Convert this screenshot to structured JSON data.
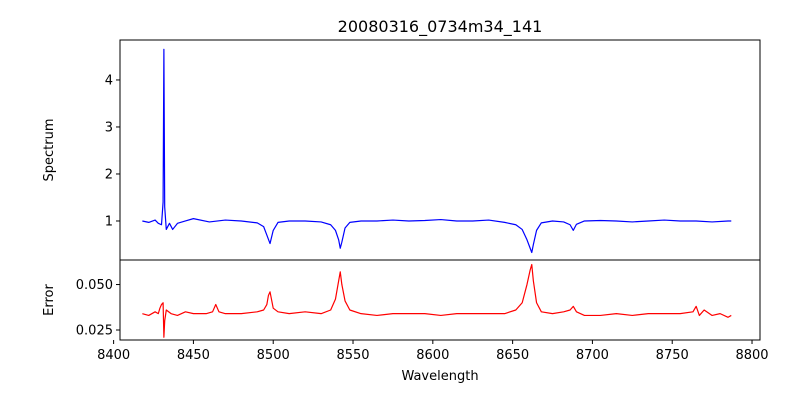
{
  "chart_data": {
    "type": "line",
    "title": "20080316_0734m34_141",
    "xlabel": "Wavelength",
    "xlim": [
      8404,
      8805
    ],
    "xticks": [
      8400,
      8450,
      8500,
      8550,
      8600,
      8650,
      8700,
      8750,
      8800
    ],
    "panels": [
      {
        "ylabel": "Spectrum",
        "ylim": [
          0.17,
          4.85
        ],
        "yticks": [
          1,
          2,
          3,
          4
        ],
        "series": [
          {
            "color": "#0000ff",
            "x": [
              8418,
              8422,
              8426,
              8428,
              8430,
              8431,
              8431.5,
              8432,
              8433,
              8435,
              8437,
              8440,
              8445,
              8450,
              8460,
              8470,
              8480,
              8490,
              8494,
              8496,
              8498,
              8500,
              8503,
              8510,
              8520,
              8530,
              8536,
              8539,
              8541,
              8542,
              8543,
              8545,
              8548,
              8555,
              8565,
              8575,
              8585,
              8595,
              8605,
              8615,
              8625,
              8635,
              8645,
              8652,
              8656,
              8659,
              8661,
              8662,
              8663,
              8665,
              8668,
              8675,
              8682,
              8686,
              8688,
              8690,
              8695,
              8705,
              8715,
              8725,
              8735,
              8745,
              8755,
              8765,
              8775,
              8785,
              8787
            ],
            "values": [
              1.0,
              0.97,
              1.02,
              0.95,
              0.92,
              1.4,
              4.65,
              1.3,
              0.82,
              0.95,
              0.82,
              0.95,
              1.0,
              1.05,
              0.98,
              1.02,
              1.0,
              0.96,
              0.88,
              0.7,
              0.52,
              0.8,
              0.97,
              1.0,
              1.0,
              0.98,
              0.92,
              0.8,
              0.6,
              0.42,
              0.55,
              0.85,
              0.97,
              1.0,
              1.0,
              1.02,
              1.0,
              1.01,
              1.03,
              1.0,
              1.0,
              1.02,
              0.97,
              0.92,
              0.82,
              0.6,
              0.42,
              0.33,
              0.5,
              0.8,
              0.96,
              1.0,
              0.98,
              0.92,
              0.8,
              0.93,
              1.0,
              1.01,
              1.0,
              0.98,
              1.0,
              1.02,
              1.0,
              1.0,
              0.98,
              1.0,
              1.0
            ]
          }
        ]
      },
      {
        "ylabel": "Error",
        "ylim": [
          0.0195,
          0.0635
        ],
        "yticks": [
          0.025,
          0.05
        ],
        "yticklabels": [
          "0.025",
          "0.050"
        ],
        "series": [
          {
            "color": "#ff0000",
            "x": [
              8418,
              8422,
              8426,
              8428,
              8429,
              8430,
              8431,
              8431.5,
              8432,
              8433,
              8436,
              8440,
              8445,
              8450,
              8458,
              8462,
              8464,
              8466,
              8470,
              8480,
              8490,
              8494,
              8496,
              8497,
              8498,
              8500,
              8503,
              8510,
              8520,
              8530,
              8536,
              8539,
              8541,
              8542,
              8543,
              8545,
              8548,
              8555,
              8565,
              8575,
              8585,
              8595,
              8605,
              8615,
              8625,
              8635,
              8645,
              8652,
              8656,
              8659,
              8661,
              8662,
              8663,
              8665,
              8668,
              8675,
              8682,
              8686,
              8688,
              8690,
              8695,
              8705,
              8715,
              8725,
              8735,
              8745,
              8755,
              8763,
              8765,
              8767,
              8770,
              8775,
              8780,
              8785,
              8787
            ],
            "values": [
              0.034,
              0.033,
              0.035,
              0.034,
              0.037,
              0.039,
              0.04,
              0.021,
              0.03,
              0.036,
              0.034,
              0.033,
              0.035,
              0.034,
              0.034,
              0.035,
              0.039,
              0.035,
              0.034,
              0.034,
              0.035,
              0.036,
              0.039,
              0.044,
              0.046,
              0.037,
              0.035,
              0.034,
              0.035,
              0.034,
              0.036,
              0.042,
              0.052,
              0.057,
              0.05,
              0.041,
              0.036,
              0.034,
              0.033,
              0.034,
              0.034,
              0.034,
              0.033,
              0.034,
              0.034,
              0.034,
              0.034,
              0.036,
              0.04,
              0.05,
              0.058,
              0.061,
              0.052,
              0.04,
              0.035,
              0.034,
              0.035,
              0.036,
              0.038,
              0.035,
              0.033,
              0.033,
              0.034,
              0.033,
              0.034,
              0.034,
              0.034,
              0.035,
              0.038,
              0.033,
              0.036,
              0.033,
              0.034,
              0.032,
              0.033
            ]
          }
        ]
      }
    ]
  }
}
